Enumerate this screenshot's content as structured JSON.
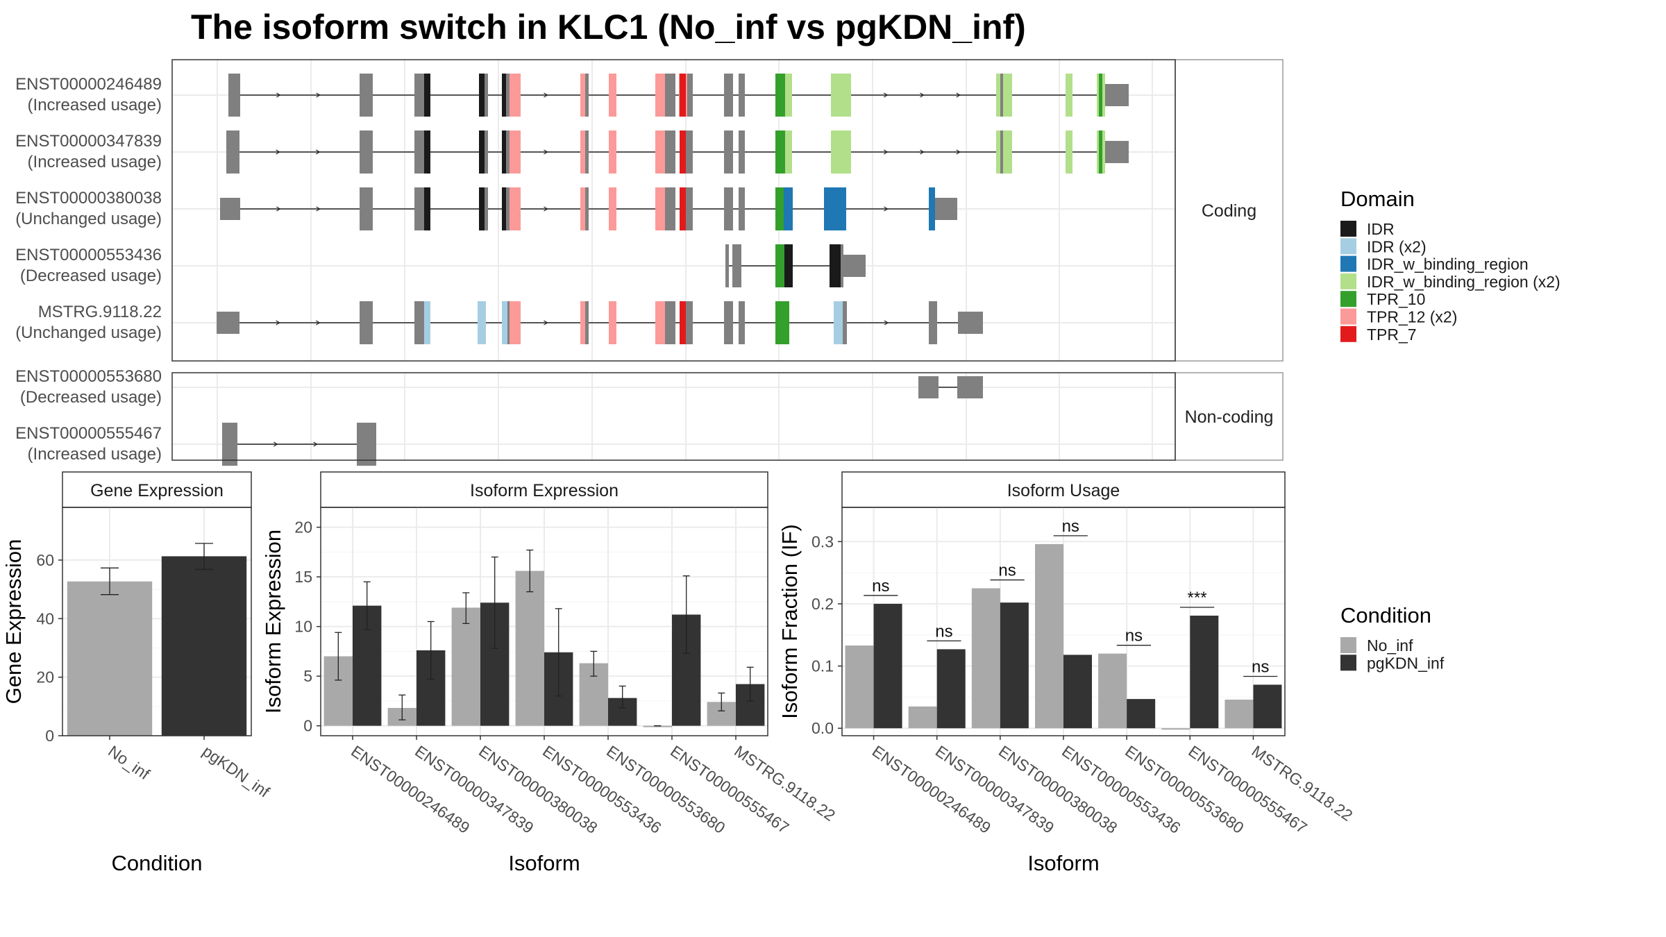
{
  "title": "The isoform switch in KLC1 (No_inf vs pgKDN_inf)",
  "colors": {
    "exon": "#808080",
    "no_inf": "#a9a9a9",
    "pgkdn_inf": "#333333",
    "IDR": "#1a1a1a",
    "IDR (x2)": "#a6cee3",
    "IDR_w_binding_region": "#1f78b4",
    "IDR_w_binding_region (x2)": "#b2df8a",
    "TPR_10": "#33a02c",
    "TPR_12 (x2)": "#fb9a99",
    "TPR_7": "#e31a1c"
  },
  "legends": {
    "domain": {
      "title": "Domain",
      "items": [
        "IDR",
        "IDR (x2)",
        "IDR_w_binding_region",
        "IDR_w_binding_region (x2)",
        "TPR_10",
        "TPR_12 (x2)",
        "TPR_7"
      ]
    },
    "condition": {
      "title": "Condition",
      "items": [
        "No_inf",
        "pgKDN_inf"
      ]
    }
  },
  "chart_data": [
    {
      "type": "gene_structure",
      "panels": [
        {
          "label": "Coding",
          "isoforms": [
            {
              "id": "ENST00000246489",
              "usage": "(Increased usage)"
            },
            {
              "id": "ENST00000347839",
              "usage": "(Increased usage)"
            },
            {
              "id": "ENST00000380038",
              "usage": "(Unchanged usage)"
            },
            {
              "id": "ENST00000553436",
              "usage": "(Decreased usage)"
            },
            {
              "id": "MSTRG.9118.22",
              "usage": "(Unchanged usage)"
            }
          ]
        },
        {
          "label": "Non-coding",
          "isoforms": [
            {
              "id": "ENST00000553680",
              "usage": "(Decreased usage)"
            },
            {
              "id": "ENST00000555467",
              "usage": "(Increased usage)"
            }
          ]
        }
      ]
    },
    {
      "type": "bar",
      "title": "Gene Expression",
      "xlabel": "Condition",
      "ylabel": "Gene Expression",
      "ylim": [
        0,
        78
      ],
      "yticks": [
        0,
        20,
        40,
        60
      ],
      "categories": [
        "No_inf",
        "pgKDN_inf"
      ],
      "values": [
        52.7,
        61.3
      ],
      "errors": [
        [
          48.2,
          57.3
        ],
        [
          56.8,
          65.7
        ]
      ]
    },
    {
      "type": "bar",
      "title": "Isoform Expression",
      "xlabel": "Isoform",
      "ylabel": "Isoform Expression",
      "ylim": [
        -1,
        22
      ],
      "yticks": [
        0,
        5,
        10,
        15,
        20
      ],
      "categories": [
        "ENST00000246489",
        "ENST00000347839",
        "ENST00000380038",
        "ENST00000553436",
        "ENST00000553680",
        "ENST00000555467",
        "MSTRG.9118.22"
      ],
      "series": [
        {
          "name": "No_inf",
          "values": [
            7.0,
            1.8,
            11.9,
            15.6,
            6.3,
            0.0,
            2.4
          ],
          "errors": [
            [
              4.6,
              9.4
            ],
            [
              0.6,
              3.1
            ],
            [
              10.3,
              13.4
            ],
            [
              13.5,
              17.7
            ],
            [
              5.0,
              7.5
            ],
            [
              0.0,
              0.0
            ],
            [
              1.5,
              3.3
            ]
          ]
        },
        {
          "name": "pgKDN_inf",
          "values": [
            12.1,
            7.6,
            12.4,
            7.4,
            2.8,
            11.2,
            4.2
          ],
          "errors": [
            [
              9.7,
              14.5
            ],
            [
              4.7,
              10.5
            ],
            [
              7.8,
              17.0
            ],
            [
              3.0,
              11.8
            ],
            [
              1.8,
              4.0
            ],
            [
              7.3,
              15.1
            ],
            [
              2.5,
              5.9
            ]
          ]
        }
      ]
    },
    {
      "type": "bar",
      "title": "Isoform Usage",
      "xlabel": "Isoform",
      "ylabel": "Isoform Fraction (IF)",
      "ylim": [
        -0.012,
        0.355
      ],
      "yticks": [
        0.0,
        0.1,
        0.2,
        0.3
      ],
      "ytick_labels": [
        "0.0",
        "0.1",
        "0.2",
        "0.3"
      ],
      "categories": [
        "ENST00000246489",
        "ENST00000347839",
        "ENST00000380038",
        "ENST00000553436",
        "ENST00000553680",
        "ENST00000555467",
        "MSTRG.9118.22"
      ],
      "series": [
        {
          "name": "No_inf",
          "values": [
            0.133,
            0.035,
            0.225,
            0.296,
            0.12,
            0.0,
            0.046
          ]
        },
        {
          "name": "pgKDN_inf",
          "values": [
            0.2,
            0.127,
            0.202,
            0.118,
            0.047,
            0.181,
            0.07
          ]
        }
      ],
      "significance": [
        "ns",
        "ns",
        "ns",
        "ns",
        "ns",
        "***",
        "ns"
      ]
    }
  ]
}
